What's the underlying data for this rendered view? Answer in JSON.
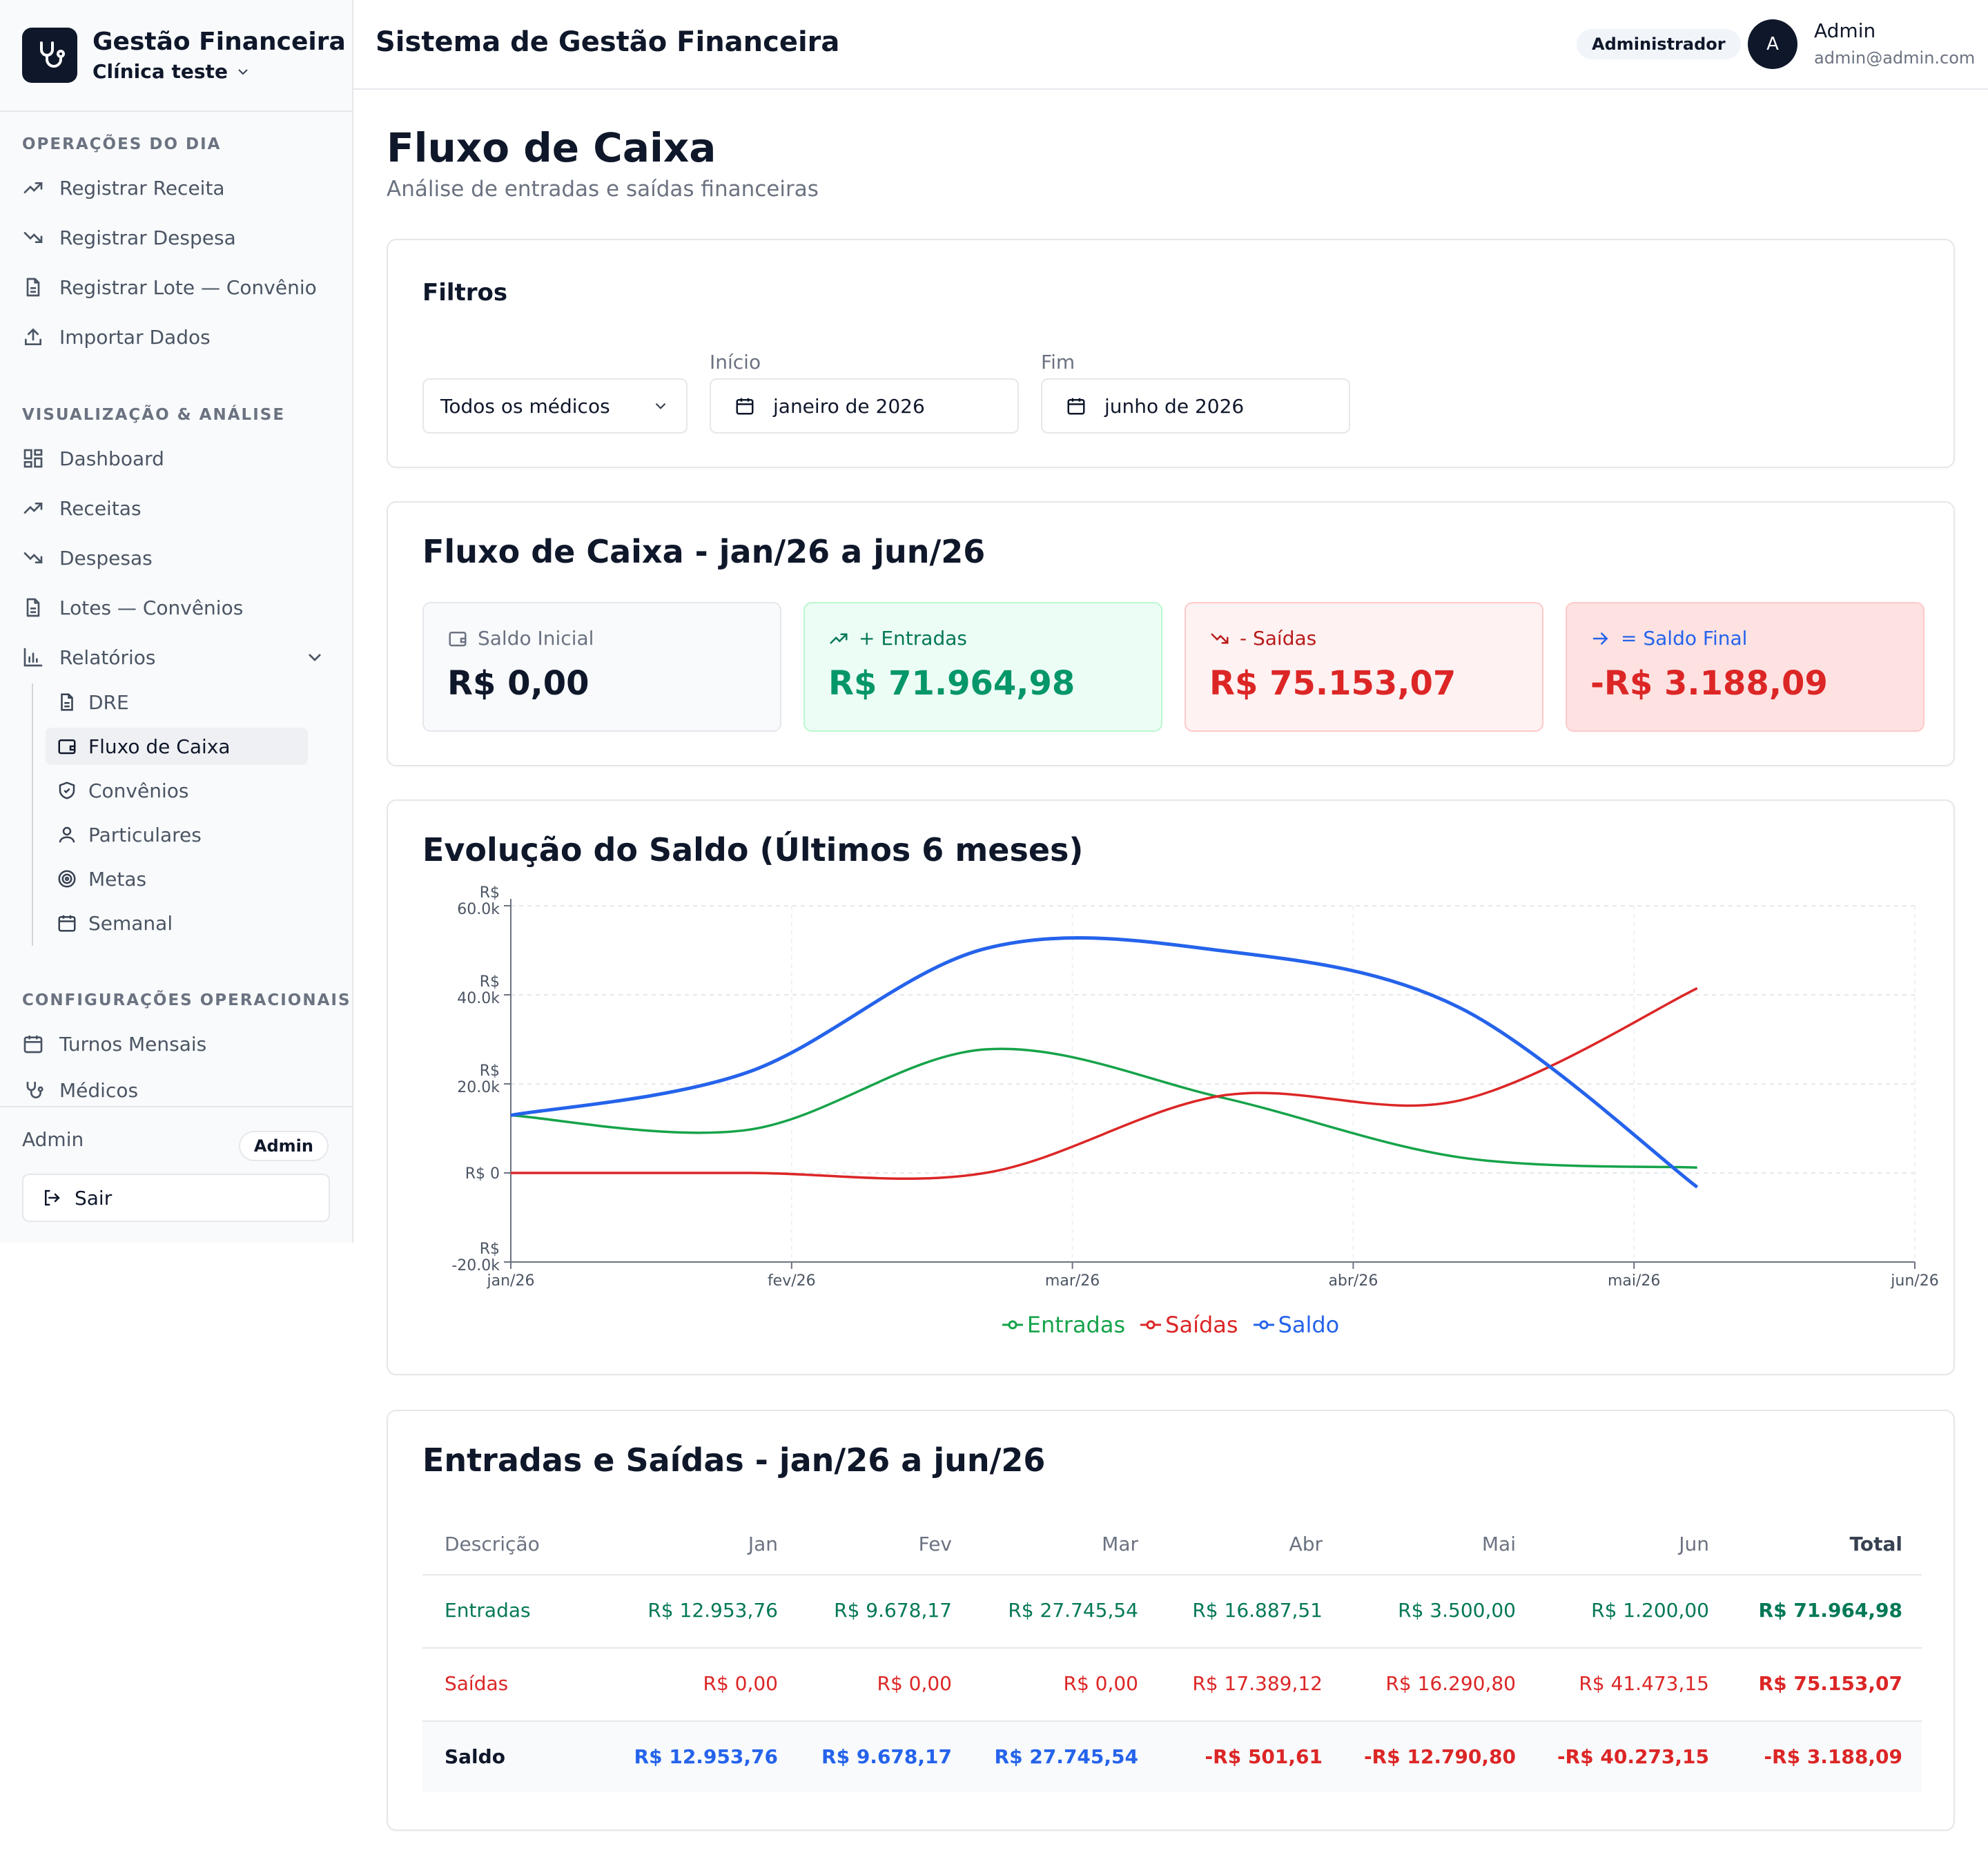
{
  "sidebar": {
    "brand_title": "Gestão Financeira",
    "clinic": "Clínica teste",
    "sections": {
      "ops_title": "OPERAÇÕES DO DIA",
      "viz_title": "VISUALIZAÇÃO & ANÁLISE",
      "cfg_title": "CONFIGURAÇÕES OPERACIONAIS"
    },
    "ops_items": [
      "Registrar Receita",
      "Registrar Despesa",
      "Registrar Lote — Convênio",
      "Importar Dados"
    ],
    "viz_items": [
      "Dashboard",
      "Receitas",
      "Despesas",
      "Lotes — Convênios",
      "Relatórios"
    ],
    "report_items": [
      "DRE",
      "Fluxo de Caixa",
      "Convênios",
      "Particulares",
      "Metas",
      "Semanal"
    ],
    "cfg_items": [
      "Turnos Mensais",
      "Médicos"
    ],
    "footer_user": "Admin",
    "footer_badge": "Admin",
    "logout_label": "Sair"
  },
  "topbar": {
    "title": "Sistema de Gestão Financeira",
    "role": "Administrador",
    "avatar_letter": "A",
    "user_name": "Admin",
    "user_email": "admin@admin.com"
  },
  "page": {
    "title": "Fluxo de Caixa",
    "subtitle": "Análise de entradas e saídas financeiras"
  },
  "filters": {
    "title": "Filtros",
    "doctor_value": "Todos os médicos",
    "start_label": "Início",
    "start_value": "janeiro de 2026",
    "end_label": "Fim",
    "end_value": "junho de 2026"
  },
  "summary": {
    "title": "Fluxo de Caixa - jan/26 a jun/26",
    "saldo_inicial_label": "Saldo Inicial",
    "saldo_inicial_value": "R$ 0,00",
    "entradas_label": "+ Entradas",
    "entradas_value": "R$ 71.964,98",
    "saidas_label": "- Saídas",
    "saidas_value": "R$ 75.153,07",
    "saldo_final_label": "= Saldo Final",
    "saldo_final_value": "-R$ 3.188,09"
  },
  "colors": {
    "entradas": "#16a34a",
    "saidas": "#dc2626",
    "saldo": "#2563eb"
  },
  "chart_data": {
    "type": "line",
    "title": "Evolução do Saldo (Últimos 6 meses)",
    "x_ticks": [
      "jan/26",
      "fev/26",
      "mar/26",
      "abr/26",
      "mai/26",
      "jun/26"
    ],
    "y_ticks": [
      {
        "value": 60000,
        "line1": "R$",
        "line2": "60.0k"
      },
      {
        "value": 40000,
        "line1": "R$",
        "line2": "40.0k"
      },
      {
        "value": 20000,
        "line1": "R$",
        "line2": "20.0k"
      },
      {
        "value": 0,
        "line1": "",
        "line2": "R$ 0"
      },
      {
        "value": -20000,
        "line1": "R$",
        "line2": "-20.0k"
      }
    ],
    "ylim": [
      -20000,
      60000
    ],
    "grid": true,
    "legend_position": "bottom-center",
    "categories": [
      "Jan",
      "Fev",
      "Mar",
      "Abr",
      "Mai",
      "Jun"
    ],
    "series": [
      {
        "name": "Entradas",
        "values": [
          12953.76,
          9678.17,
          27745.54,
          16887.51,
          3500.0,
          1200.0
        ]
      },
      {
        "name": "Saídas",
        "values": [
          0,
          0,
          0,
          17389.12,
          16290.8,
          41473.15
        ]
      },
      {
        "name": "Saldo",
        "values": [
          12953.76,
          22631.93,
          50377.47,
          49875.86,
          37085.06,
          -3188.09
        ]
      }
    ]
  },
  "table": {
    "title": "Entradas e Saídas - jan/26 a jun/26",
    "headers": [
      "Descrição",
      "Jan",
      "Fev",
      "Mar",
      "Abr",
      "Mai",
      "Jun",
      "Total"
    ],
    "rows": [
      {
        "label": "Entradas",
        "cells": [
          "R$ 12.953,76",
          "R$ 9.678,17",
          "R$ 27.745,54",
          "R$ 16.887,51",
          "R$ 3.500,00",
          "R$ 1.200,00"
        ],
        "total": "R$ 71.964,98"
      },
      {
        "label": "Saídas",
        "cells": [
          "R$ 0,00",
          "R$ 0,00",
          "R$ 0,00",
          "R$ 17.389,12",
          "R$ 16.290,80",
          "R$ 41.473,15"
        ],
        "total": "R$ 75.153,07"
      },
      {
        "label": "Saldo",
        "cells": [
          "R$ 12.953,76",
          "R$ 9.678,17",
          "R$ 27.745,54",
          "-R$ 501,61",
          "-R$ 12.790,80",
          "-R$ 40.273,15"
        ],
        "total": "-R$ 3.188,09"
      }
    ]
  }
}
